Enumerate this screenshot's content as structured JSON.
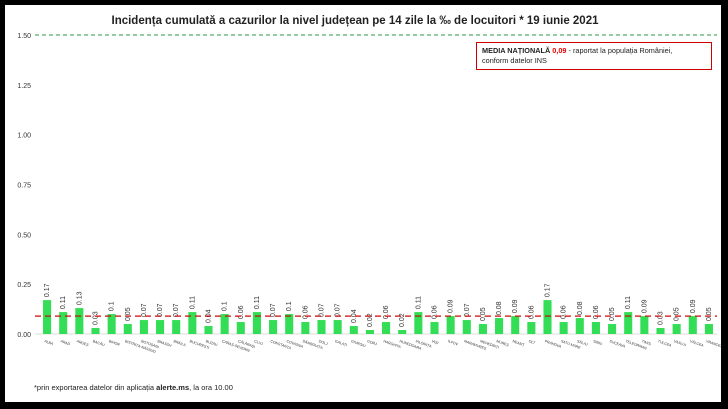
{
  "title": "Incidența cumulată a cazurilor la nivel județean pe 14 zile la ‰ de locuitori *  19 iunie 2021",
  "legend": {
    "label": "MEDIA NAȚIONALĂ",
    "value": "0,09",
    "suffix": " - raportat la populația României,",
    "line2": "conform datelor INS"
  },
  "footnote": {
    "prefix": "*prin exportarea datelor din aplicația ",
    "bold": "alerte.ms",
    "suffix": ", la ora 10.00"
  },
  "colors": {
    "bar": "#33dd55",
    "average_line": "#cc0000",
    "threshold_line": "#2a9a4a",
    "axis_text": "#333333"
  },
  "chart_data": {
    "type": "bar",
    "title": "Incidența cumulată a cazurilor la nivel județean pe 14 zile la ‰ de locuitori *  19 iunie 2021",
    "xlabel": "",
    "ylabel": "",
    "ylim": [
      0,
      1.5
    ],
    "yticks": [
      "0.00",
      "0.25",
      "0.50",
      "0.75",
      "1.00",
      "1.25",
      "1.50"
    ],
    "grid": false,
    "reference_lines": [
      {
        "value": 1.5,
        "style": "dashed",
        "color": "#2a9a4a"
      },
      {
        "value": 0.09,
        "style": "dashed",
        "color": "#cc0000"
      }
    ],
    "categories": [
      "ALBA",
      "ARAD",
      "ARGEȘ",
      "BACĂU",
      "BIHOR",
      "BISTRIȚA-NĂSĂUD",
      "BOTOȘANI",
      "BRAȘOV",
      "BRĂILA",
      "BUCUREȘTI",
      "BUZĂU",
      "CARAȘ-SEVERIN",
      "CĂLĂRAȘI",
      "CLUJ",
      "CONSTANȚA",
      "COVASNA",
      "DÂMBOVIȚA",
      "DOLJ",
      "GALAȚI",
      "GIURGIU",
      "GORJ",
      "HARGHITA",
      "HUNEDOARA",
      "IALOMIȚA",
      "IAȘI",
      "ILFOV",
      "MARAMUREȘ",
      "MEHEDINȚI",
      "MUREȘ",
      "NEAMȚ",
      "OLT",
      "PRAHOVA",
      "SATU MARE",
      "SĂLAJ",
      "SIBIU",
      "SUCEAVA",
      "TELEORMAN",
      "TIMIȘ",
      "TULCEA",
      "VASLUI",
      "VÂLCEA",
      "VRANCEA"
    ],
    "values": [
      0.17,
      0.11,
      0.13,
      0.03,
      0.1,
      0.05,
      0.07,
      0.07,
      0.07,
      0.11,
      0.04,
      0.1,
      0.06,
      0.11,
      0.07,
      0.1,
      0.06,
      0.07,
      0.07,
      0.04,
      0.02,
      0.06,
      0.02,
      0.11,
      0.06,
      0.09,
      0.07,
      0.05,
      0.08,
      0.09,
      0.06,
      0.17,
      0.06,
      0.08,
      0.06,
      0.05,
      0.11,
      0.09,
      0.03,
      0.05,
      0.09,
      0.05
    ],
    "value_labels": [
      "0.17",
      "0.11",
      "0.13",
      "0.03",
      "0.1",
      "0.05",
      "0.07",
      "0.07",
      "0.07",
      "0.11",
      "0.04",
      "0.1",
      "0.06",
      "0.11",
      "0.07",
      "0.1",
      "0.06",
      "0.07",
      "0.07",
      "0.04",
      "0.02",
      "0.06",
      "0.02",
      "0.11",
      "0.06",
      "0.09",
      "0.07",
      "0.05",
      "0.08",
      "0.09",
      "0.06",
      "0.17",
      "0.06",
      "0.08",
      "0.06",
      "0.05",
      "0.11",
      "0.09",
      "0.03",
      "0.05",
      "0.09",
      "0.05"
    ]
  }
}
